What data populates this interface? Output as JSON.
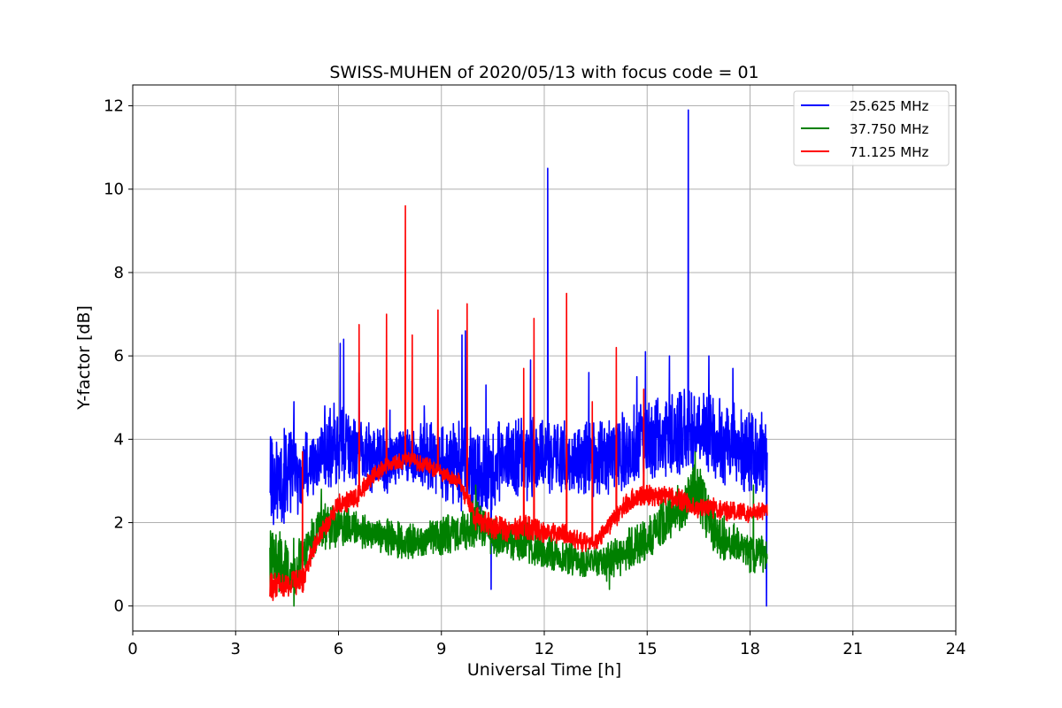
{
  "chart_data": {
    "type": "line",
    "title": "SWISS-MUHEN of 2020/05/13 with focus code = 01",
    "xlabel": "Universal Time [h]",
    "ylabel": "Y-factor [dB]",
    "xlim": [
      0,
      24
    ],
    "ylim": [
      -0.6,
      12.5
    ],
    "xticks": [
      0,
      3,
      6,
      9,
      12,
      15,
      18,
      21,
      24
    ],
    "yticks": [
      0,
      2,
      4,
      6,
      8,
      10,
      12
    ],
    "xtick_labels": [
      "0",
      "3",
      "6",
      "9",
      "12",
      "15",
      "18",
      "21",
      "24"
    ],
    "ytick_labels": [
      "0",
      "2",
      "4",
      "6",
      "8",
      "10",
      "12"
    ],
    "grid": true,
    "legend_position": "top-right",
    "x_range_data": [
      4.0,
      18.5
    ],
    "series": [
      {
        "name": "25.625 MHz",
        "color": "#0000ff",
        "band_low": [
          [
            4.0,
            1.9
          ],
          [
            4.5,
            2.0
          ],
          [
            5.0,
            2.3
          ],
          [
            5.5,
            2.7
          ],
          [
            6.0,
            2.9
          ],
          [
            6.5,
            2.9
          ],
          [
            7.0,
            2.7
          ],
          [
            7.5,
            2.7
          ],
          [
            8.0,
            3.0
          ],
          [
            8.5,
            2.8
          ],
          [
            9.0,
            2.5
          ],
          [
            9.5,
            2.3
          ],
          [
            10.0,
            2.2
          ],
          [
            10.5,
            2.3
          ],
          [
            11.0,
            2.6
          ],
          [
            11.5,
            2.5
          ],
          [
            12.0,
            2.6
          ],
          [
            12.5,
            2.7
          ],
          [
            13.0,
            2.7
          ],
          [
            13.5,
            2.6
          ],
          [
            14.0,
            2.6
          ],
          [
            14.5,
            2.9
          ],
          [
            15.0,
            3.1
          ],
          [
            15.5,
            3.0
          ],
          [
            16.0,
            3.1
          ],
          [
            16.5,
            3.3
          ],
          [
            17.0,
            3.0
          ],
          [
            17.5,
            2.8
          ],
          [
            18.0,
            2.7
          ],
          [
            18.5,
            2.7
          ]
        ],
        "band_high": [
          [
            4.0,
            4.1
          ],
          [
            4.5,
            4.3
          ],
          [
            5.0,
            4.2
          ],
          [
            5.5,
            4.5
          ],
          [
            6.0,
            5.0
          ],
          [
            6.5,
            4.6
          ],
          [
            7.0,
            4.4
          ],
          [
            7.5,
            4.3
          ],
          [
            8.0,
            4.3
          ],
          [
            8.5,
            4.4
          ],
          [
            9.0,
            4.4
          ],
          [
            9.5,
            4.5
          ],
          [
            10.0,
            4.2
          ],
          [
            10.5,
            4.4
          ],
          [
            11.0,
            4.6
          ],
          [
            11.5,
            4.5
          ],
          [
            12.0,
            4.6
          ],
          [
            12.5,
            4.5
          ],
          [
            13.0,
            4.4
          ],
          [
            13.5,
            4.5
          ],
          [
            14.0,
            4.6
          ],
          [
            14.5,
            4.8
          ],
          [
            15.0,
            5.0
          ],
          [
            15.5,
            5.0
          ],
          [
            16.0,
            5.2
          ],
          [
            16.5,
            5.2
          ],
          [
            17.0,
            5.0
          ],
          [
            17.5,
            4.9
          ],
          [
            18.0,
            4.7
          ],
          [
            18.5,
            4.7
          ]
        ],
        "spikes": [
          [
            4.05,
            4.0
          ],
          [
            4.7,
            4.9
          ],
          [
            5.6,
            4.8
          ],
          [
            6.05,
            6.3
          ],
          [
            6.15,
            6.4
          ],
          [
            6.6,
            5.6
          ],
          [
            7.5,
            4.7
          ],
          [
            8.5,
            4.8
          ],
          [
            9.6,
            6.5
          ],
          [
            9.7,
            6.6
          ],
          [
            10.3,
            5.3
          ],
          [
            10.45,
            0.4
          ],
          [
            11.6,
            5.9
          ],
          [
            12.1,
            10.5
          ],
          [
            13.3,
            5.6
          ],
          [
            14.7,
            5.5
          ],
          [
            14.95,
            6.1
          ],
          [
            15.65,
            6.0
          ],
          [
            16.2,
            11.9
          ],
          [
            16.8,
            6.0
          ],
          [
            17.5,
            5.7
          ],
          [
            18.48,
            0.0
          ]
        ]
      },
      {
        "name": "37.750 MHz",
        "color": "#008000",
        "band_low": [
          [
            4.0,
            0.2
          ],
          [
            4.5,
            0.3
          ],
          [
            4.8,
            0.1
          ],
          [
            5.0,
            0.8
          ],
          [
            5.5,
            1.3
          ],
          [
            6.0,
            1.4
          ],
          [
            6.5,
            1.4
          ],
          [
            7.0,
            1.3
          ],
          [
            7.5,
            1.2
          ],
          [
            8.0,
            1.1
          ],
          [
            8.5,
            1.2
          ],
          [
            9.0,
            1.2
          ],
          [
            9.5,
            1.3
          ],
          [
            10.0,
            1.4
          ],
          [
            10.5,
            1.2
          ],
          [
            11.0,
            1.1
          ],
          [
            11.5,
            1.0
          ],
          [
            12.0,
            0.9
          ],
          [
            12.5,
            0.8
          ],
          [
            13.0,
            0.7
          ],
          [
            13.5,
            0.7
          ],
          [
            14.0,
            0.5
          ],
          [
            14.5,
            0.9
          ],
          [
            15.0,
            1.1
          ],
          [
            15.5,
            1.5
          ],
          [
            16.0,
            1.8
          ],
          [
            16.5,
            2.0
          ],
          [
            17.0,
            1.0
          ],
          [
            17.5,
            0.9
          ],
          [
            18.0,
            0.8
          ],
          [
            18.5,
            0.8
          ]
        ],
        "band_high": [
          [
            4.0,
            1.9
          ],
          [
            4.5,
            1.7
          ],
          [
            4.8,
            1.6
          ],
          [
            5.0,
            1.8
          ],
          [
            5.5,
            2.5
          ],
          [
            6.0,
            2.4
          ],
          [
            6.5,
            2.3
          ],
          [
            7.0,
            2.1
          ],
          [
            7.5,
            2.1
          ],
          [
            8.0,
            2.0
          ],
          [
            8.5,
            2.0
          ],
          [
            9.0,
            2.2
          ],
          [
            9.5,
            2.3
          ],
          [
            10.0,
            2.6
          ],
          [
            10.5,
            2.1
          ],
          [
            11.0,
            2.0
          ],
          [
            11.5,
            2.0
          ],
          [
            12.0,
            1.8
          ],
          [
            12.5,
            1.6
          ],
          [
            13.0,
            1.5
          ],
          [
            13.5,
            1.4
          ],
          [
            14.0,
            1.6
          ],
          [
            14.5,
            1.9
          ],
          [
            15.0,
            2.1
          ],
          [
            15.5,
            2.6
          ],
          [
            16.0,
            3.0
          ],
          [
            16.5,
            3.6
          ],
          [
            17.0,
            2.4
          ],
          [
            17.5,
            2.0
          ],
          [
            18.0,
            1.9
          ],
          [
            18.5,
            1.8
          ]
        ],
        "spikes": [
          [
            4.7,
            0.0
          ],
          [
            5.5,
            2.8
          ],
          [
            10.0,
            2.9
          ],
          [
            13.9,
            0.4
          ],
          [
            16.4,
            3.7
          ],
          [
            18.1,
            2.9
          ]
        ]
      },
      {
        "name": "71.125 MHz",
        "color": "#ff0000",
        "band_low": [
          [
            4.0,
            0.1
          ],
          [
            4.5,
            0.2
          ],
          [
            5.0,
            0.3
          ],
          [
            5.2,
            1.0
          ],
          [
            5.5,
            1.5
          ],
          [
            6.0,
            2.2
          ],
          [
            6.5,
            2.3
          ],
          [
            7.0,
            2.9
          ],
          [
            7.5,
            3.2
          ],
          [
            8.0,
            3.3
          ],
          [
            8.5,
            3.2
          ],
          [
            9.0,
            3.0
          ],
          [
            9.5,
            2.8
          ],
          [
            10.0,
            1.8
          ],
          [
            10.5,
            1.6
          ],
          [
            11.0,
            1.5
          ],
          [
            11.5,
            1.6
          ],
          [
            12.0,
            1.5
          ],
          [
            12.5,
            1.5
          ],
          [
            13.0,
            1.3
          ],
          [
            13.5,
            1.3
          ],
          [
            14.0,
            1.8
          ],
          [
            14.5,
            2.3
          ],
          [
            15.0,
            2.4
          ],
          [
            15.5,
            2.4
          ],
          [
            16.0,
            2.3
          ],
          [
            16.5,
            2.1
          ],
          [
            17.0,
            2.1
          ],
          [
            17.5,
            2.0
          ],
          [
            18.0,
            2.0
          ],
          [
            18.5,
            2.1
          ]
        ],
        "band_high": [
          [
            4.0,
            0.8
          ],
          [
            4.5,
            0.8
          ],
          [
            5.0,
            0.9
          ],
          [
            5.2,
            1.5
          ],
          [
            5.5,
            2.0
          ],
          [
            6.0,
            2.7
          ],
          [
            6.5,
            2.8
          ],
          [
            7.0,
            3.4
          ],
          [
            7.5,
            3.6
          ],
          [
            8.0,
            3.7
          ],
          [
            8.5,
            3.6
          ],
          [
            9.0,
            3.4
          ],
          [
            9.5,
            3.2
          ],
          [
            10.0,
            2.4
          ],
          [
            10.5,
            2.2
          ],
          [
            11.0,
            2.1
          ],
          [
            11.5,
            2.2
          ],
          [
            12.0,
            2.0
          ],
          [
            12.5,
            2.0
          ],
          [
            13.0,
            1.8
          ],
          [
            13.5,
            1.7
          ],
          [
            14.0,
            2.3
          ],
          [
            14.5,
            2.8
          ],
          [
            15.0,
            2.9
          ],
          [
            15.5,
            2.9
          ],
          [
            16.0,
            2.8
          ],
          [
            16.5,
            2.6
          ],
          [
            17.0,
            2.6
          ],
          [
            17.5,
            2.5
          ],
          [
            18.0,
            2.5
          ],
          [
            18.5,
            2.5
          ]
        ],
        "spikes": [
          [
            4.95,
            3.7
          ],
          [
            6.6,
            6.75
          ],
          [
            7.4,
            7.0
          ],
          [
            7.95,
            9.6
          ],
          [
            8.15,
            6.5
          ],
          [
            8.9,
            7.1
          ],
          [
            9.75,
            7.25
          ],
          [
            11.4,
            5.7
          ],
          [
            11.7,
            6.9
          ],
          [
            12.65,
            7.5
          ],
          [
            13.4,
            4.9
          ],
          [
            14.1,
            6.2
          ],
          [
            14.9,
            5.2
          ]
        ]
      }
    ]
  }
}
